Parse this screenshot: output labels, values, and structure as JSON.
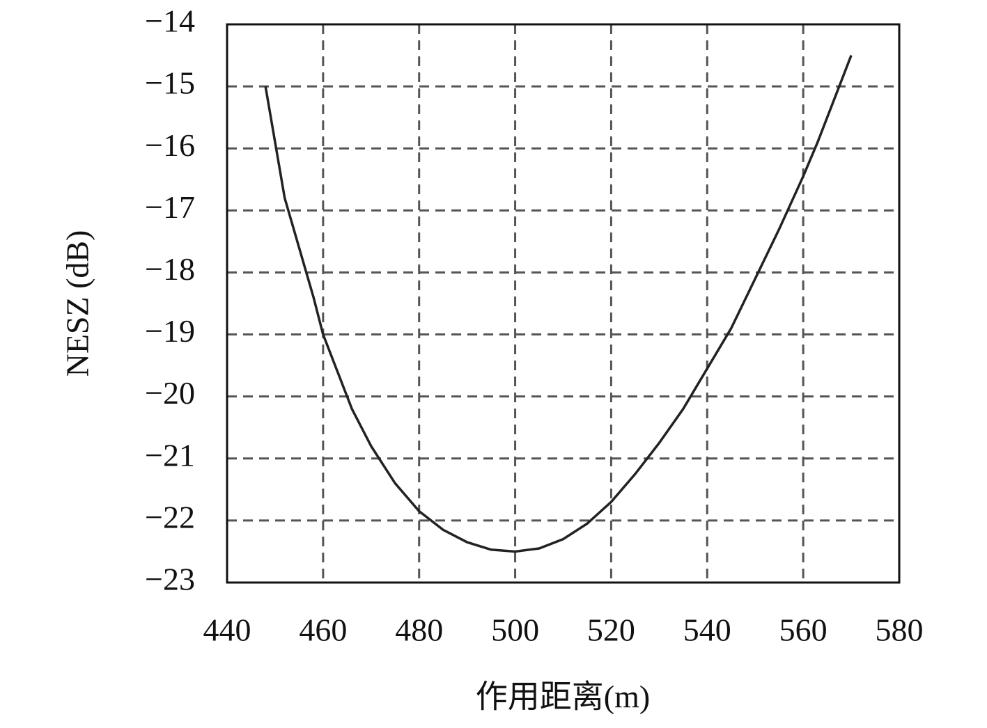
{
  "chart_data": {
    "type": "line",
    "x_label": "作用距离(m)",
    "y_label": "NESZ (dB)",
    "x": [
      448,
      450,
      452,
      455,
      458,
      460,
      463,
      466,
      470,
      475,
      480,
      485,
      490,
      495,
      500,
      505,
      510,
      515,
      520,
      525,
      530,
      535,
      540,
      545,
      550,
      555,
      560,
      563,
      566,
      568,
      570
    ],
    "series": [
      {
        "color": "#222222",
        "values": [
          -15.0,
          -15.9,
          -16.8,
          -17.6,
          -18.4,
          -19.0,
          -19.6,
          -20.2,
          -20.8,
          -21.4,
          -21.85,
          -22.15,
          -22.35,
          -22.47,
          -22.5,
          -22.45,
          -22.3,
          -22.05,
          -21.7,
          -21.25,
          -20.75,
          -20.2,
          -19.55,
          -18.9,
          -18.1,
          -17.3,
          -16.45,
          -15.9,
          -15.3,
          -14.9,
          -14.5
        ]
      }
    ],
    "xlim": [
      440,
      580
    ],
    "xticks": [
      440,
      460,
      480,
      500,
      520,
      540,
      560,
      580
    ],
    "ylim": [
      -23,
      -14
    ],
    "yticks": [
      {
        "value": -23,
        "label": "−23"
      },
      {
        "value": -22,
        "label": "−22"
      },
      {
        "value": -21,
        "label": "−21"
      },
      {
        "value": -20,
        "label": "−20"
      },
      {
        "value": -19,
        "label": "−19"
      },
      {
        "value": -18,
        "label": "−18"
      },
      {
        "value": -17,
        "label": "−17"
      },
      {
        "value": -16,
        "label": "−16"
      },
      {
        "value": -15,
        "label": "−15"
      },
      {
        "value": -14,
        "label": "−14"
      }
    ],
    "grid": true
  }
}
